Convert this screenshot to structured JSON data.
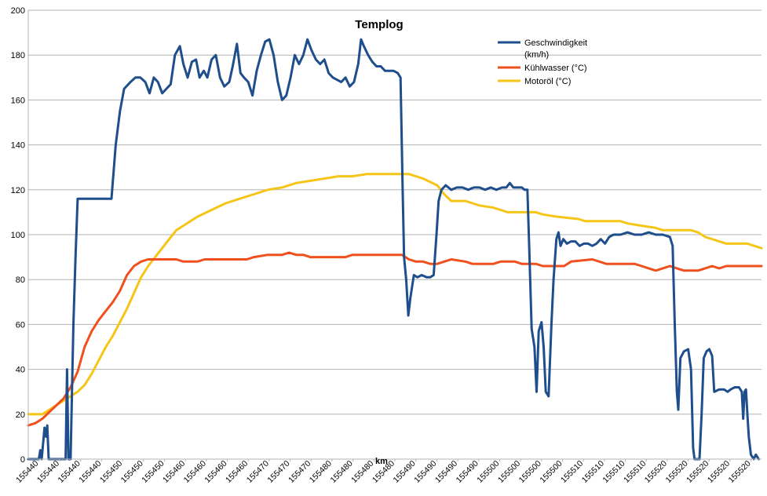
{
  "chart_data": {
    "type": "line",
    "title": "Templog",
    "xlabel": "km",
    "ylabel": "",
    "ylim": [
      0,
      200
    ],
    "yticks": [
      0,
      20,
      40,
      60,
      80,
      100,
      120,
      140,
      160,
      180,
      200
    ],
    "grid": true,
    "legend_position": "top-right",
    "x_tick_labels": [
      "155440",
      "155440",
      "155440",
      "155440",
      "155450",
      "155450",
      "155450",
      "155460",
      "155460",
      "155460",
      "155460",
      "155470",
      "155470",
      "155470",
      "155480",
      "155480",
      "155480",
      "155480",
      "155490",
      "155490",
      "155490",
      "155490",
      "155500",
      "155500",
      "155500",
      "155500",
      "155510",
      "155510",
      "155510",
      "155510",
      "155520",
      "155520",
      "155520",
      "155520",
      "155520"
    ],
    "x_domain": [
      0,
      100
    ],
    "series": [
      {
        "name": "Geschwindigkeit (km/h)",
        "color": "#1f4e8c",
        "points": [
          [
            0,
            0
          ],
          [
            1.5,
            0
          ],
          [
            1.7,
            4
          ],
          [
            1.9,
            0
          ],
          [
            2.3,
            14
          ],
          [
            2.5,
            10
          ],
          [
            2.7,
            15
          ],
          [
            2.9,
            0
          ],
          [
            3.2,
            0
          ],
          [
            5.3,
            0
          ],
          [
            5.5,
            40
          ],
          [
            5.7,
            0
          ],
          [
            6.0,
            0
          ],
          [
            6.4,
            60
          ],
          [
            6.7,
            90
          ],
          [
            7.0,
            116
          ],
          [
            11.8,
            116
          ],
          [
            12.4,
            140
          ],
          [
            13.0,
            155
          ],
          [
            13.6,
            165
          ],
          [
            14.5,
            168
          ],
          [
            15.2,
            170
          ],
          [
            15.9,
            170
          ],
          [
            16.6,
            168
          ],
          [
            17.2,
            163
          ],
          [
            17.8,
            170
          ],
          [
            18.4,
            168
          ],
          [
            19.0,
            163
          ],
          [
            19.6,
            165
          ],
          [
            20.2,
            167
          ],
          [
            20.8,
            180
          ],
          [
            21.5,
            184
          ],
          [
            22.0,
            176
          ],
          [
            22.6,
            170
          ],
          [
            23.2,
            177
          ],
          [
            23.8,
            178
          ],
          [
            24.3,
            170
          ],
          [
            24.9,
            173
          ],
          [
            25.4,
            170
          ],
          [
            26.0,
            178
          ],
          [
            26.6,
            180
          ],
          [
            27.2,
            170
          ],
          [
            27.8,
            166
          ],
          [
            28.5,
            168
          ],
          [
            29.0,
            175
          ],
          [
            29.6,
            185
          ],
          [
            30.1,
            172
          ],
          [
            30.6,
            170
          ],
          [
            31.2,
            168
          ],
          [
            31.8,
            162
          ],
          [
            32.4,
            173
          ],
          [
            33.0,
            180
          ],
          [
            33.6,
            186
          ],
          [
            34.2,
            187
          ],
          [
            34.8,
            180
          ],
          [
            35.4,
            168
          ],
          [
            36.0,
            160
          ],
          [
            36.6,
            162
          ],
          [
            37.2,
            170
          ],
          [
            37.8,
            180
          ],
          [
            38.4,
            176
          ],
          [
            39.0,
            180
          ],
          [
            39.6,
            187
          ],
          [
            40.2,
            182
          ],
          [
            40.8,
            178
          ],
          [
            41.4,
            176
          ],
          [
            42.0,
            178
          ],
          [
            42.6,
            172
          ],
          [
            43.2,
            170
          ],
          [
            43.8,
            169
          ],
          [
            44.4,
            168
          ],
          [
            45.0,
            170
          ],
          [
            45.6,
            166
          ],
          [
            46.2,
            168
          ],
          [
            46.8,
            176
          ],
          [
            47.2,
            187
          ],
          [
            47.6,
            184
          ],
          [
            48.2,
            180
          ],
          [
            48.8,
            177
          ],
          [
            49.4,
            175
          ],
          [
            50.0,
            175
          ],
          [
            50.6,
            173
          ],
          [
            51.2,
            173
          ],
          [
            51.8,
            173
          ],
          [
            52.4,
            172
          ],
          [
            52.8,
            170
          ],
          [
            53.1,
            120
          ],
          [
            53.3,
            90
          ],
          [
            53.6,
            80
          ],
          [
            53.9,
            64
          ],
          [
            54.2,
            72
          ],
          [
            54.7,
            82
          ],
          [
            55.2,
            81
          ],
          [
            55.8,
            82
          ],
          [
            56.5,
            81
          ],
          [
            57.0,
            81
          ],
          [
            57.5,
            82
          ],
          [
            57.9,
            100
          ],
          [
            58.2,
            115
          ],
          [
            58.6,
            120
          ],
          [
            59.2,
            122
          ],
          [
            60.0,
            120
          ],
          [
            60.8,
            121
          ],
          [
            61.6,
            121
          ],
          [
            62.4,
            120
          ],
          [
            63.2,
            121
          ],
          [
            64.0,
            121
          ],
          [
            64.8,
            120
          ],
          [
            65.6,
            121
          ],
          [
            66.4,
            120
          ],
          [
            67.2,
            121
          ],
          [
            67.8,
            121
          ],
          [
            68.3,
            123
          ],
          [
            68.8,
            121
          ],
          [
            69.4,
            121
          ],
          [
            70.0,
            121
          ],
          [
            70.4,
            120
          ],
          [
            70.8,
            120
          ],
          [
            71.1,
            90
          ],
          [
            71.4,
            58
          ],
          [
            71.8,
            50
          ],
          [
            72.1,
            30
          ],
          [
            72.4,
            57
          ],
          [
            72.8,
            61
          ],
          [
            73.1,
            50
          ],
          [
            73.4,
            30
          ],
          [
            73.8,
            28
          ],
          [
            74.2,
            60
          ],
          [
            74.5,
            80
          ],
          [
            74.9,
            98
          ],
          [
            75.2,
            101
          ],
          [
            75.5,
            95
          ],
          [
            75.9,
            98
          ],
          [
            76.4,
            96
          ],
          [
            77.0,
            97
          ],
          [
            77.6,
            97
          ],
          [
            78.2,
            95
          ],
          [
            78.8,
            96
          ],
          [
            79.4,
            96
          ],
          [
            80.0,
            95
          ],
          [
            80.6,
            96
          ],
          [
            81.2,
            98
          ],
          [
            81.8,
            96
          ],
          [
            82.4,
            99
          ],
          [
            83.0,
            100
          ],
          [
            84.0,
            100
          ],
          [
            85.0,
            101
          ],
          [
            86.0,
            100
          ],
          [
            87.0,
            100
          ],
          [
            88.0,
            101
          ],
          [
            89.0,
            100
          ],
          [
            90.0,
            100
          ],
          [
            91.0,
            99
          ],
          [
            91.4,
            95
          ],
          [
            91.7,
            60
          ],
          [
            92.0,
            30
          ],
          [
            92.2,
            22
          ],
          [
            92.5,
            45
          ],
          [
            93.0,
            48
          ],
          [
            93.6,
            49
          ],
          [
            94.0,
            40
          ],
          [
            94.3,
            5
          ],
          [
            94.5,
            0
          ],
          [
            95.2,
            0
          ],
          [
            95.5,
            20
          ],
          [
            95.8,
            45
          ],
          [
            96.2,
            48
          ],
          [
            96.6,
            49
          ],
          [
            97.0,
            46
          ],
          [
            97.3,
            30
          ],
          [
            98.0,
            31
          ],
          [
            98.7,
            31
          ],
          [
            99.2,
            30
          ],
          [
            99.6,
            31
          ],
          [
            100.2,
            32
          ],
          [
            100.8,
            32
          ],
          [
            101.2,
            30
          ],
          [
            101.4,
            18
          ],
          [
            101.6,
            30
          ],
          [
            101.8,
            31
          ],
          [
            102.0,
            20
          ],
          [
            102.2,
            10
          ],
          [
            102.5,
            2
          ],
          [
            102.9,
            0
          ],
          [
            103.2,
            2
          ],
          [
            103.6,
            0
          ]
        ]
      },
      {
        "name": "Kühlwasser (°C)",
        "color": "#f0501e",
        "points": [
          [
            0,
            15
          ],
          [
            1,
            16
          ],
          [
            2,
            18
          ],
          [
            3,
            21
          ],
          [
            4,
            24
          ],
          [
            5,
            27
          ],
          [
            6,
            32
          ],
          [
            7,
            39
          ],
          [
            8,
            50
          ],
          [
            9,
            57
          ],
          [
            10,
            62
          ],
          [
            11,
            66
          ],
          [
            12,
            70
          ],
          [
            13,
            75
          ],
          [
            14,
            82
          ],
          [
            15,
            86
          ],
          [
            16,
            88
          ],
          [
            17,
            89
          ],
          [
            18,
            89
          ],
          [
            21,
            89
          ],
          [
            22,
            88
          ],
          [
            24,
            88
          ],
          [
            25,
            89
          ],
          [
            31,
            89
          ],
          [
            32,
            90
          ],
          [
            34,
            91
          ],
          [
            36,
            91
          ],
          [
            37,
            92
          ],
          [
            38,
            91
          ],
          [
            39,
            91
          ],
          [
            40,
            90
          ],
          [
            45,
            90
          ],
          [
            46,
            91
          ],
          [
            53,
            91
          ],
          [
            54,
            89
          ],
          [
            55,
            88
          ],
          [
            56,
            88
          ],
          [
            57,
            87
          ],
          [
            58,
            87
          ],
          [
            59,
            88
          ],
          [
            60,
            89
          ],
          [
            62,
            88
          ],
          [
            63,
            87
          ],
          [
            66,
            87
          ],
          [
            67,
            88
          ],
          [
            69,
            88
          ],
          [
            70,
            87
          ],
          [
            72,
            87
          ],
          [
            73,
            86
          ],
          [
            76,
            86
          ],
          [
            77,
            88
          ],
          [
            80,
            89
          ],
          [
            81,
            88
          ],
          [
            82,
            87
          ],
          [
            86,
            87
          ],
          [
            87,
            86
          ],
          [
            88,
            85
          ],
          [
            89,
            84
          ],
          [
            90,
            85
          ],
          [
            91,
            86
          ],
          [
            92,
            85
          ],
          [
            93,
            84
          ],
          [
            95,
            84
          ],
          [
            96,
            85
          ],
          [
            97,
            86
          ],
          [
            98,
            85
          ],
          [
            99,
            86
          ],
          [
            104,
            86
          ]
        ]
      },
      {
        "name": "Motoröl (°C)",
        "color": "#f5c518",
        "points": [
          [
            0,
            20
          ],
          [
            2,
            20
          ],
          [
            3,
            22
          ],
          [
            4,
            24
          ],
          [
            5,
            26
          ],
          [
            6,
            28
          ],
          [
            7,
            30
          ],
          [
            8,
            33
          ],
          [
            9,
            38
          ],
          [
            10,
            44
          ],
          [
            11,
            50
          ],
          [
            12,
            55
          ],
          [
            13,
            61
          ],
          [
            14,
            67
          ],
          [
            15,
            74
          ],
          [
            16,
            81
          ],
          [
            17,
            86
          ],
          [
            18,
            90
          ],
          [
            19,
            94
          ],
          [
            20,
            98
          ],
          [
            21,
            102
          ],
          [
            22,
            104
          ],
          [
            24,
            108
          ],
          [
            26,
            111
          ],
          [
            28,
            114
          ],
          [
            30,
            116
          ],
          [
            32,
            118
          ],
          [
            34,
            120
          ],
          [
            36,
            121
          ],
          [
            38,
            123
          ],
          [
            40,
            124
          ],
          [
            42,
            125
          ],
          [
            44,
            126
          ],
          [
            46,
            126
          ],
          [
            48,
            127
          ],
          [
            54,
            127
          ],
          [
            56,
            125
          ],
          [
            58,
            122
          ],
          [
            59,
            118
          ],
          [
            60,
            115
          ],
          [
            62,
            115
          ],
          [
            63,
            114
          ],
          [
            64,
            113
          ],
          [
            66,
            112
          ],
          [
            67,
            111
          ],
          [
            68,
            110
          ],
          [
            72,
            110
          ],
          [
            73,
            109
          ],
          [
            75,
            108
          ],
          [
            78,
            107
          ],
          [
            79,
            106
          ],
          [
            84,
            106
          ],
          [
            85,
            105
          ],
          [
            87,
            104
          ],
          [
            89,
            103
          ],
          [
            90,
            102
          ],
          [
            94,
            102
          ],
          [
            95,
            101
          ],
          [
            96,
            99
          ],
          [
            97,
            98
          ],
          [
            98,
            97
          ],
          [
            99,
            96
          ],
          [
            102,
            96
          ],
          [
            103,
            95
          ],
          [
            104,
            94
          ]
        ]
      }
    ]
  },
  "legend": [
    {
      "line1": "Geschwindigkeit",
      "line2": "(km/h)"
    },
    {
      "line1": "Kühlwasser (°C)"
    },
    {
      "line1": "Motoröl (°C)"
    }
  ]
}
